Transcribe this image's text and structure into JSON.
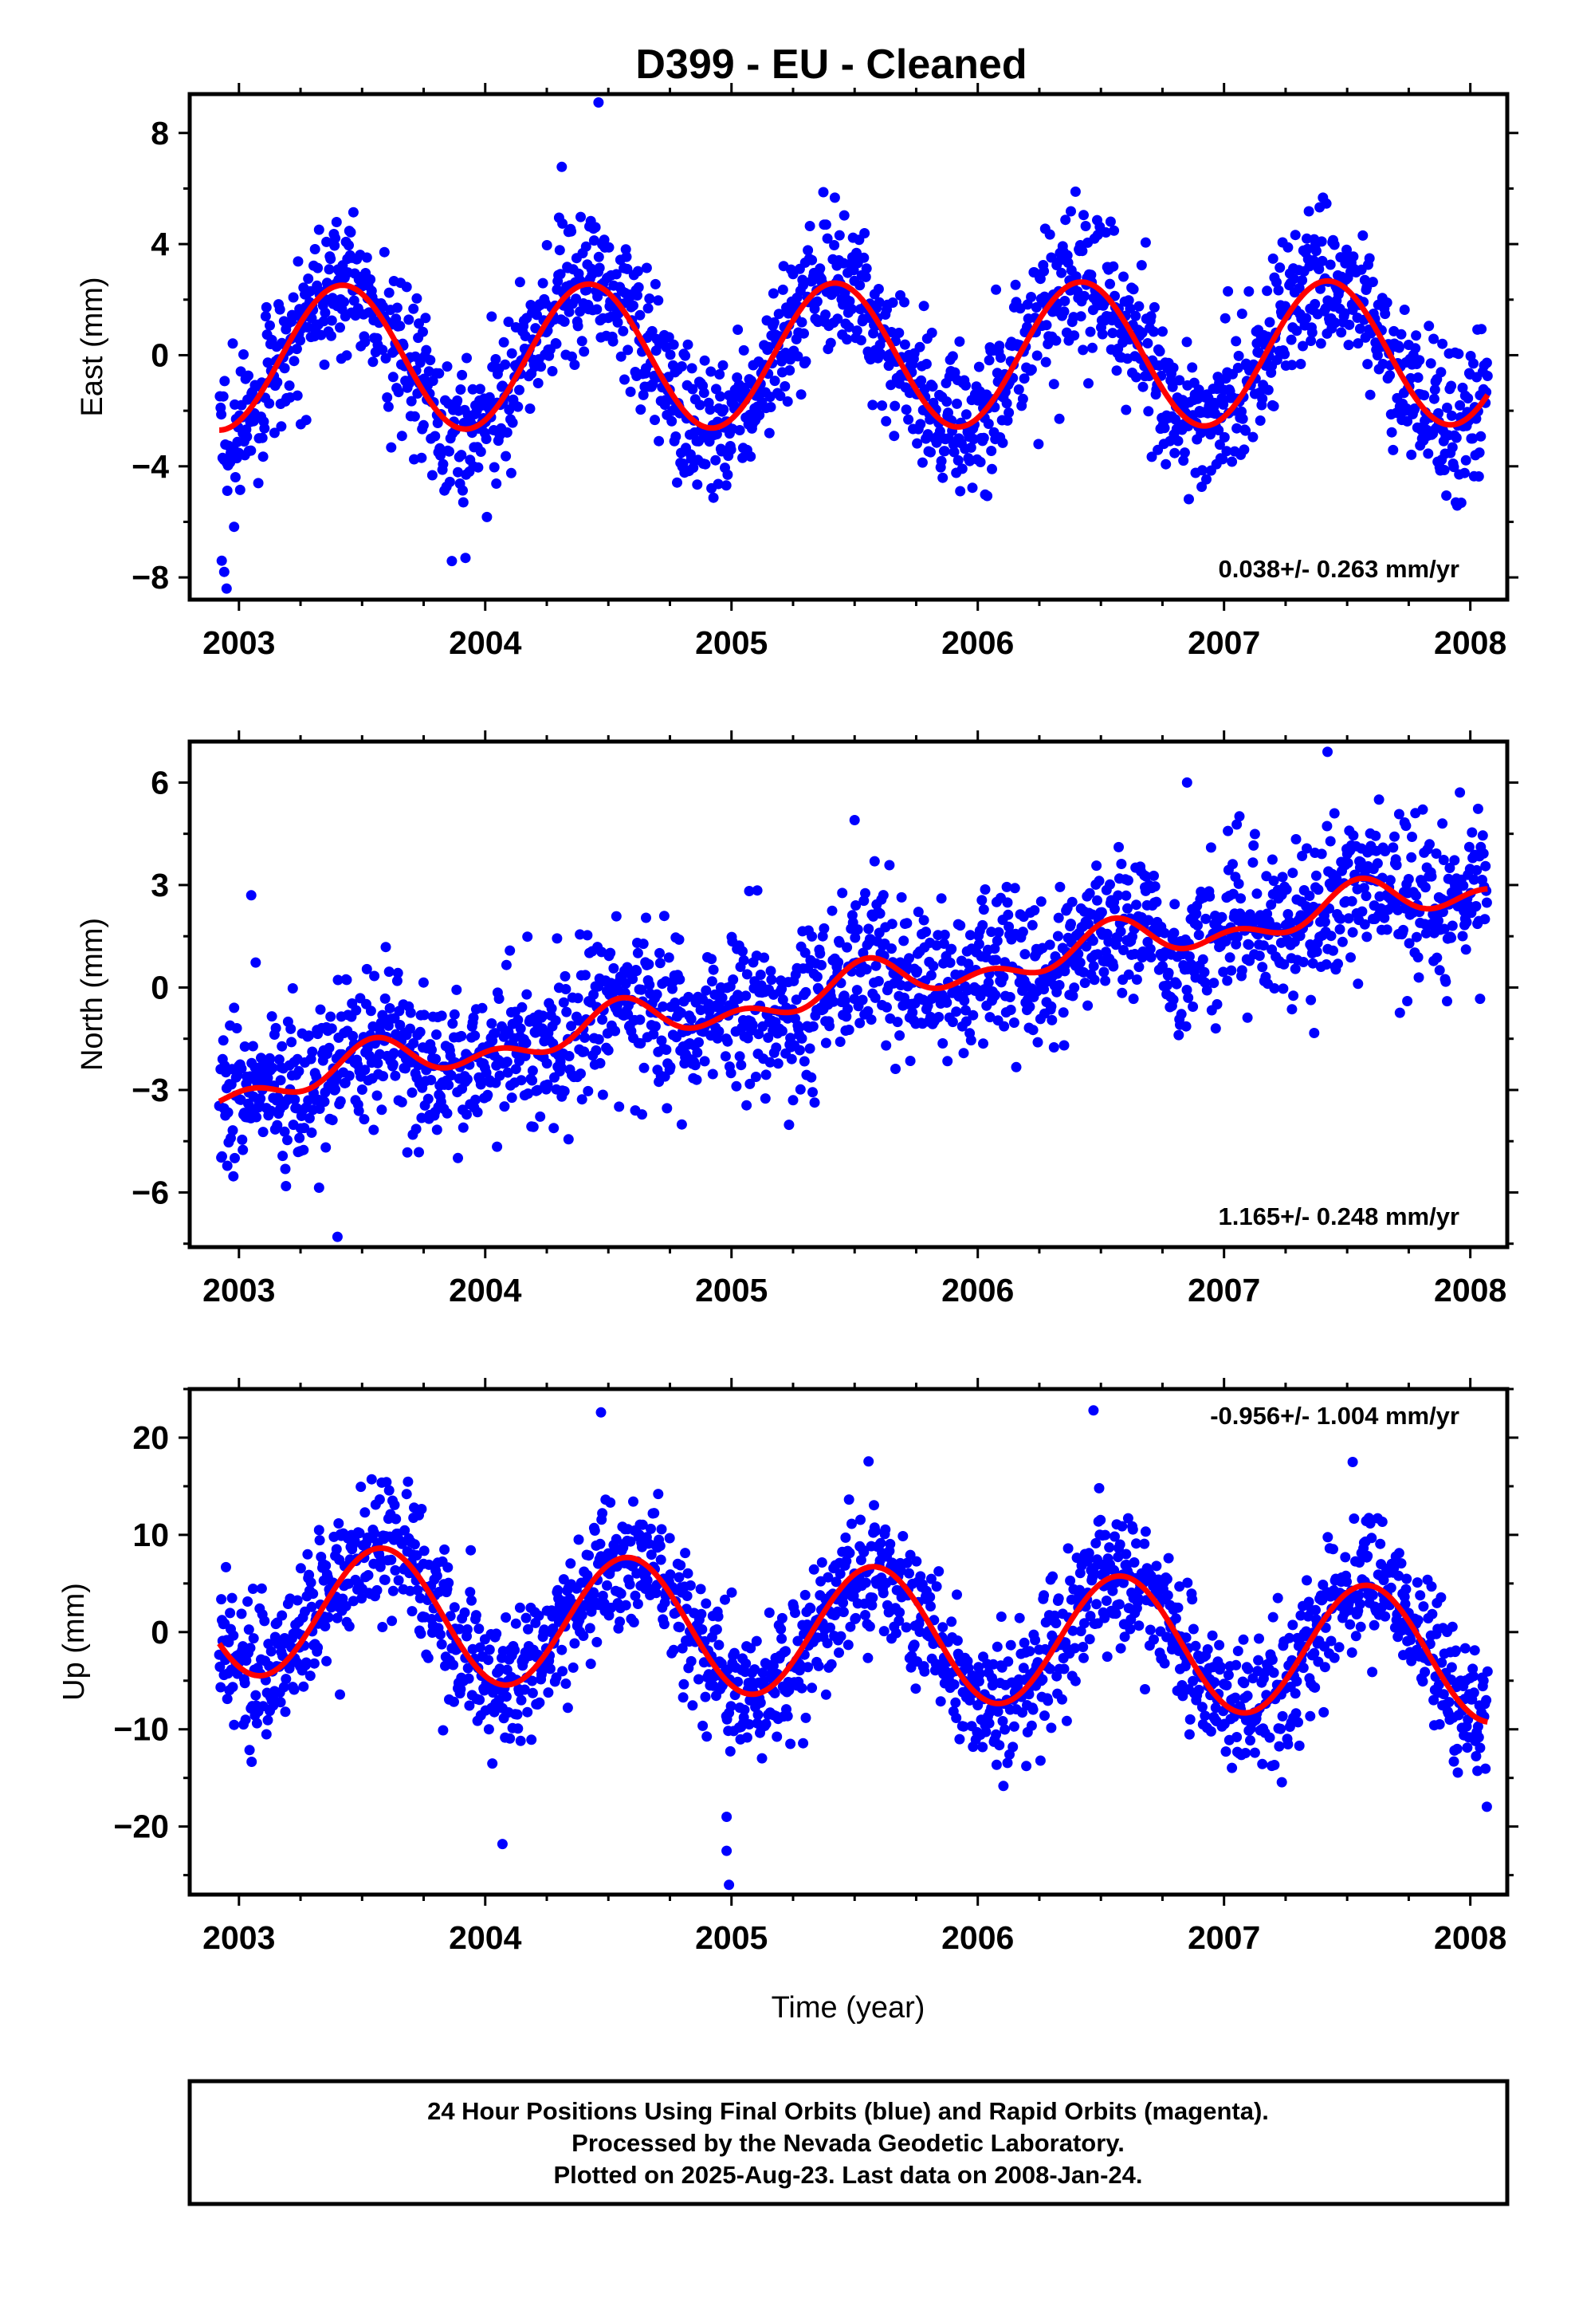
{
  "title": "D399  - EU - Cleaned",
  "x_axis_label": "Time (year)",
  "footer_lines": [
    "24 Hour Positions Using Final Orbits (blue) and Rapid Orbits (magenta).",
    "Processed by the Nevada Geodetic Laboratory.",
    "Plotted on 2025-Aug-23. Last data on 2008-Jan-24."
  ],
  "colors": {
    "points": "#0000ff",
    "fit": "#ff0000",
    "frame": "#000000"
  },
  "chart_data": [
    {
      "type": "scatter",
      "title": "D399  - EU - Cleaned",
      "ylabel": "East (mm)",
      "xlabel": "",
      "xlim": [
        2002.8,
        2008.15
      ],
      "ylim": [
        -8.8,
        9.4
      ],
      "x_ticks": [
        2003,
        2004,
        2005,
        2006,
        2007,
        2008
      ],
      "y_ticks": [
        -8,
        -4,
        0,
        4,
        8
      ],
      "annotation": "0.038+/- 0.263 mm/yr",
      "annotation_position": "bottom-right",
      "fit": {
        "slope": 0.038,
        "annual_amplitude": 2.6,
        "annual_peak": 0.42,
        "semiannual_amplitude": 0.0,
        "offset": 0.0,
        "scatter": 1.3
      },
      "outliers": [
        [
          2002.93,
          -7.4
        ],
        [
          2002.94,
          -7.8
        ],
        [
          2002.95,
          -8.4
        ],
        [
          2004.46,
          9.1
        ],
        [
          2003.92,
          -7.3
        ]
      ],
      "x_range": [
        2002.92,
        2008.07
      ],
      "series": [
        {
          "name": "Final Orbits",
          "mark": "points"
        },
        {
          "name": "Model fit",
          "mark": "line"
        }
      ]
    },
    {
      "type": "scatter",
      "ylabel": "North (mm)",
      "xlabel": "",
      "xlim": [
        2002.8,
        2008.15
      ],
      "ylim": [
        -7.6,
        7.2
      ],
      "x_ticks": [
        2003,
        2004,
        2005,
        2006,
        2007,
        2008
      ],
      "y_ticks": [
        -6,
        -3,
        0,
        3,
        6
      ],
      "annotation": "1.165+/- 0.248 mm/yr",
      "annotation_position": "bottom-right",
      "fit": {
        "slope": 1.165,
        "annual_amplitude": 0.45,
        "annual_peak": 0.55,
        "semiannual_amplitude": 0.35,
        "offset": 0.0,
        "scatter": 1.1
      },
      "outliers": [
        [
          2003.4,
          -7.3
        ],
        [
          2007.42,
          6.9
        ],
        [
          2006.85,
          6.0
        ],
        [
          2005.5,
          4.9
        ],
        [
          2003.05,
          2.7
        ]
      ],
      "x_range": [
        2002.92,
        2008.07
      ],
      "series": [
        {
          "name": "Final Orbits",
          "mark": "points"
        },
        {
          "name": "Model fit",
          "mark": "line"
        }
      ]
    },
    {
      "type": "scatter",
      "ylabel": "Up (mm)",
      "xlabel": "Time (year)",
      "xlim": [
        2002.8,
        2008.15
      ],
      "ylim": [
        -27,
        25
      ],
      "x_ticks": [
        2003,
        2004,
        2005,
        2006,
        2007,
        2008
      ],
      "y_ticks": [
        -20,
        -10,
        0,
        10,
        20
      ],
      "annotation": "-0.956+/- 1.004 mm/yr",
      "annotation_position": "top-right",
      "fit": {
        "slope": -0.956,
        "annual_amplitude": 6.8,
        "annual_peak": 0.58,
        "semiannual_amplitude": 0.0,
        "offset": 0.0,
        "scatter": 3.6
      },
      "outliers": [
        [
          2004.07,
          -21.8
        ],
        [
          2004.98,
          -19.0
        ],
        [
          2004.98,
          -22.5
        ],
        [
          2004.99,
          -26.0
        ],
        [
          2006.47,
          22.8
        ],
        [
          2004.47,
          22.6
        ]
      ],
      "x_range": [
        2002.92,
        2008.07
      ],
      "series": [
        {
          "name": "Final Orbits",
          "mark": "points"
        },
        {
          "name": "Model fit",
          "mark": "line"
        }
      ]
    }
  ]
}
